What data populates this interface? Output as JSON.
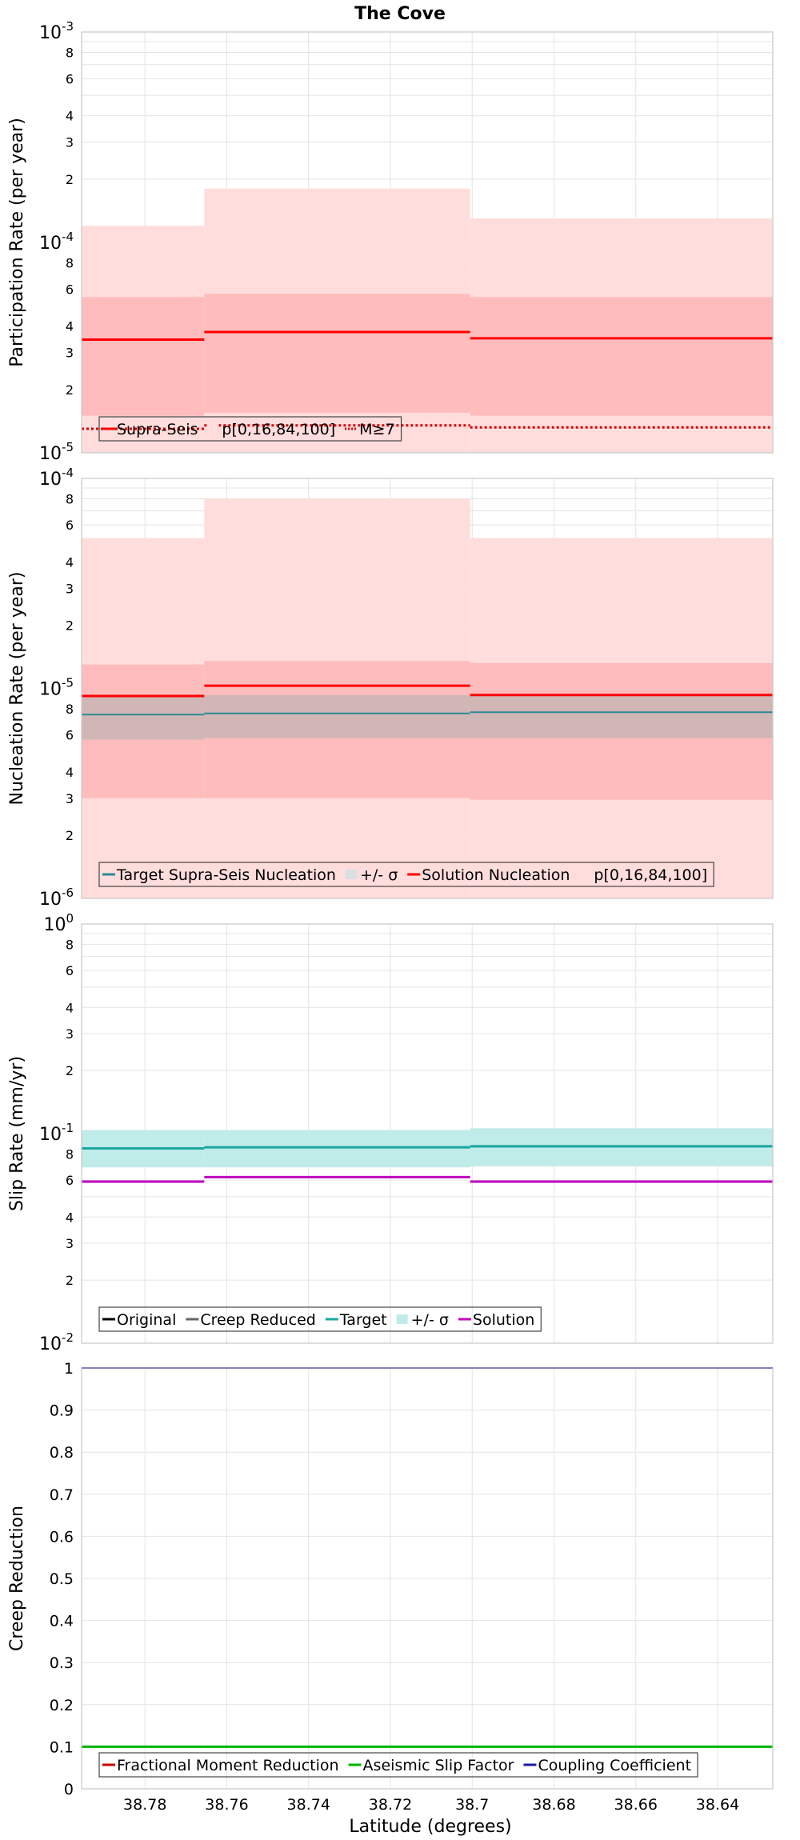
{
  "figure": {
    "title": "The Cove",
    "xlabel": "Latitude (degrees)",
    "x_ticks": [
      38.78,
      38.76,
      38.74,
      38.72,
      38.7,
      38.68,
      38.66,
      38.64
    ],
    "x_tick_labels": [
      "38.78",
      "38.76",
      "38.74",
      "38.72",
      "38.7",
      "38.68",
      "38.66",
      "38.64"
    ],
    "xlim": [
      38.7955,
      38.6265
    ],
    "x_reversed": true,
    "sections": [
      38.7955,
      38.7655,
      38.7005,
      38.6265
    ]
  },
  "colors": {
    "solution_red": "#ff0000",
    "band_light_red": "#ffdddd",
    "band_mid_red": "#ffbcbc",
    "target_teal": "#1aa7a0",
    "target_band": "#bfebe8",
    "gray_overlay": "#b9c0c0",
    "solution_magenta": "#c000c0",
    "aseismic_green": "#00b300",
    "coupling_blue": "#1a1aa0",
    "grid": "#e4e4e4",
    "frame": "#c8c8c8"
  },
  "chart_data": [
    {
      "id": "participation",
      "type": "line",
      "scale": "log",
      "ylabel": "Participation Rate (per year)",
      "ylim": [
        1e-05,
        0.001
      ],
      "y_decades": [
        {
          "base": "10",
          "exp": "-5",
          "value": 1e-05
        },
        {
          "base": "10",
          "exp": "-4",
          "value": 0.0001
        },
        {
          "base": "10",
          "exp": "-3",
          "value": 0.001
        }
      ],
      "bands": [
        {
          "name": "p[0,16,84,100]",
          "color": "#ffdddd",
          "low": [
            1e-05,
            1e-05,
            1e-05
          ],
          "high": [
            0.00012,
            0.00018,
            0.00013
          ]
        },
        {
          "name": "p[16,84]",
          "color": "#ffbcbc",
          "low": [
            1.5e-05,
            1.55e-05,
            1.5e-05
          ],
          "high": [
            5.5e-05,
            5.7e-05,
            5.5e-05
          ]
        }
      ],
      "series": [
        {
          "name": "Supra-Seis",
          "color": "#ff0000",
          "style": "solid",
          "width": 3,
          "values": [
            3.45e-05,
            3.75e-05,
            3.5e-05
          ]
        },
        {
          "name": "M≥7",
          "color": "#d40000",
          "style": "dotted",
          "width": 3,
          "values": [
            1.3e-05,
            1.35e-05,
            1.32e-05
          ]
        }
      ],
      "legend": {
        "items": [
          {
            "label": "Supra-Seis",
            "kind": "line",
            "color": "#ff0000"
          },
          {
            "label": "p[0,16,84,100]",
            "kind": "swatch",
            "color": "#ffdddd"
          },
          {
            "label": "M≥7",
            "kind": "dotted",
            "color": "#d40000"
          }
        ]
      }
    },
    {
      "id": "nucleation",
      "type": "line",
      "scale": "log",
      "ylabel": "Nucleation Rate (per year)",
      "ylim": [
        1e-06,
        0.0001
      ],
      "y_decades": [
        {
          "base": "10",
          "exp": "-6",
          "value": 1e-06
        },
        {
          "base": "10",
          "exp": "-5",
          "value": 1e-05
        },
        {
          "base": "10",
          "exp": "-4",
          "value": 0.0001
        }
      ],
      "bands": [
        {
          "name": "p[0,16,84,100]",
          "color": "#ffdddd",
          "low": [
            1e-06,
            1e-06,
            1e-06
          ],
          "high": [
            5.2e-05,
            8e-05,
            5.2e-05
          ]
        },
        {
          "name": "p[16,84]",
          "color": "#ffbcbc",
          "low": [
            3e-06,
            3e-06,
            2.95e-06
          ],
          "high": [
            1.3e-05,
            1.35e-05,
            1.32e-05
          ]
        },
        {
          "name": "+/- σ",
          "color": "#c2b4b4",
          "low": [
            5.7e-06,
            5.8e-06,
            5.8e-06
          ],
          "high": [
            9.2e-06,
            9.3e-06,
            9.3e-06
          ]
        }
      ],
      "series": [
        {
          "name": "Target Supra-Seis Nucleation",
          "color": "#2a8a96",
          "style": "solid",
          "width": 2,
          "values": [
            7.5e-06,
            7.6e-06,
            7.7e-06
          ]
        },
        {
          "name": "Solution Nucleation",
          "color": "#ff0000",
          "style": "solid",
          "width": 3,
          "values": [
            9.2e-06,
            1.03e-05,
            9.3e-06
          ]
        }
      ],
      "legend": {
        "items": [
          {
            "label": "Target Supra-Seis Nucleation",
            "kind": "line",
            "color": "#2a8a96"
          },
          {
            "label": "+/- σ",
            "kind": "swatch",
            "color": "#d8e0e0"
          },
          {
            "label": "Solution Nucleation",
            "kind": "line",
            "color": "#ff0000"
          },
          {
            "label": "p[0,16,84,100]",
            "kind": "swatch",
            "color": "#ffdddd"
          }
        ]
      }
    },
    {
      "id": "slip",
      "type": "line",
      "scale": "log",
      "ylabel": "Slip Rate (mm/yr)",
      "ylim": [
        0.01,
        1
      ],
      "y_decades": [
        {
          "base": "10",
          "exp": "-2",
          "value": 0.01
        },
        {
          "base": "10",
          "exp": "-1",
          "value": 0.1
        },
        {
          "base": "10",
          "exp": "0",
          "value": 1
        }
      ],
      "bands": [
        {
          "name": "+/- σ",
          "color": "#bfebe8",
          "low": [
            0.069,
            0.069,
            0.07
          ],
          "high": [
            0.104,
            0.104,
            0.106
          ]
        }
      ],
      "series": [
        {
          "name": "Target",
          "color": "#1aa7a0",
          "style": "solid",
          "width": 3,
          "values": [
            0.085,
            0.086,
            0.087
          ]
        },
        {
          "name": "Solution",
          "color": "#c000c0",
          "style": "solid",
          "width": 3,
          "values": [
            0.059,
            0.062,
            0.059
          ]
        }
      ],
      "legend": {
        "items": [
          {
            "label": "Original",
            "kind": "line",
            "color": "#000000"
          },
          {
            "label": "Creep Reduced",
            "kind": "line",
            "color": "#666666"
          },
          {
            "label": "Target",
            "kind": "line",
            "color": "#1aa7a0"
          },
          {
            "label": "+/- σ",
            "kind": "swatch",
            "color": "#bfebe8"
          },
          {
            "label": "Solution",
            "kind": "line",
            "color": "#c000c0"
          }
        ]
      }
    },
    {
      "id": "creep",
      "type": "line",
      "scale": "linear",
      "ylabel": "Creep Reduction",
      "ylim": [
        0,
        1
      ],
      "y_ticks": [
        0,
        0.1,
        0.2,
        0.3,
        0.4,
        0.5,
        0.6,
        0.7,
        0.8,
        0.9,
        1
      ],
      "y_tick_labels": [
        "0",
        "0.1",
        "0.2",
        "0.3",
        "0.4",
        "0.5",
        "0.6",
        "0.7",
        "0.8",
        "0.9",
        "1"
      ],
      "bands": [],
      "series": [
        {
          "name": "Aseismic Slip Factor",
          "color": "#00b300",
          "style": "solid",
          "width": 3,
          "values": [
            0.1,
            0.1,
            0.1
          ]
        },
        {
          "name": "Coupling Coefficient",
          "color": "#1a1aa0",
          "style": "solid",
          "width": 2,
          "values": [
            1,
            1,
            1
          ]
        }
      ],
      "legend": {
        "items": [
          {
            "label": "Fractional Moment Reduction",
            "kind": "line",
            "color": "#cc0000"
          },
          {
            "label": "Aseismic Slip Factor",
            "kind": "line",
            "color": "#00b300"
          },
          {
            "label": "Coupling Coefficient",
            "kind": "line",
            "color": "#1a1aa0"
          }
        ]
      }
    }
  ]
}
